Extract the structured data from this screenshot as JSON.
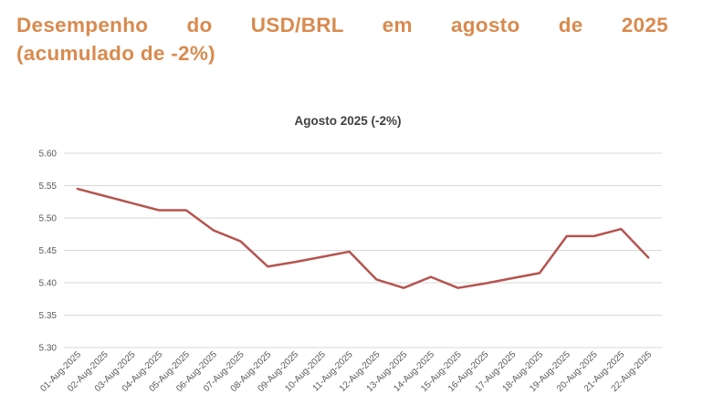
{
  "headline": {
    "line1": "Desempenho do USD/BRL em agosto de 2025",
    "line2": "(acumulado de -2%)",
    "color": "#d98a4e"
  },
  "chart_data": {
    "type": "line",
    "title": "Agosto 2025 (-2%)",
    "xlabel": "",
    "ylabel": "",
    "categories": [
      "01-Aug-2025",
      "02-Aug-2025",
      "03-Aug-2025",
      "04-Aug-2025",
      "05-Aug-2025",
      "06-Aug-2025",
      "07-Aug-2025",
      "08-Aug-2025",
      "09-Aug-2025",
      "10-Aug-2025",
      "11-Aug-2025",
      "12-Aug-2025",
      "13-Aug-2025",
      "14-Aug-2025",
      "15-Aug-2025",
      "16-Aug-2025",
      "17-Aug-2025",
      "18-Aug-2025",
      "19-Aug-2025",
      "20-Aug-2025",
      "21-Aug-2025",
      "22-Aug-2025"
    ],
    "series": [
      {
        "name": "USD/BRL",
        "color": "#b5544f",
        "values": [
          5.545,
          5.534,
          5.523,
          5.512,
          5.512,
          5.481,
          5.464,
          5.425,
          5.432,
          5.44,
          5.448,
          5.405,
          5.392,
          5.409,
          5.392,
          5.399,
          5.407,
          5.415,
          5.472,
          5.472,
          5.483,
          5.439
        ]
      }
    ],
    "yticks": [
      "5.30",
      "5.35",
      "5.40",
      "5.45",
      "5.50",
      "5.55",
      "5.60"
    ],
    "ylim": [
      5.3,
      5.6
    ],
    "grid": true,
    "legend": "none"
  }
}
